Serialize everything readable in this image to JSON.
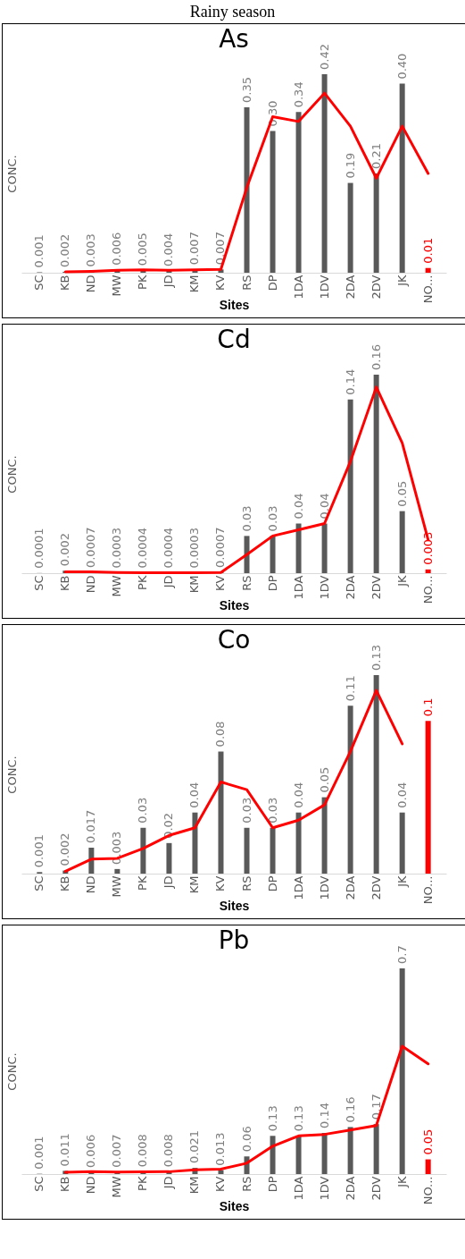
{
  "chart_data": [
    {
      "type": "bar",
      "title": "Rainy season",
      "subtitle": "As",
      "xlabel": "Sites",
      "ylabel": "CONC.",
      "tick_labels": "x",
      "grid": false,
      "line_style": "solid",
      "marker": "none",
      "categories": [
        "SC",
        "KB",
        "ND",
        "MW",
        "PK",
        "JD",
        "KM",
        "KV",
        "RS",
        "DP",
        "1DA",
        "1DV",
        "2DA",
        "2DV",
        "JK",
        "NO..."
      ],
      "series": [
        {
          "color": "#595959",
          "values": [
            0.001,
            0.002,
            0.003,
            0.006,
            0.005,
            0.004,
            0.007,
            0.007,
            0.35,
            0.3,
            0.34,
            0.42,
            0.19,
            0.21,
            0.4,
            null
          ],
          "value_labels": [
            "0.001",
            "0.002",
            "0.003",
            "0.006",
            "0.005",
            "0.004",
            "0.007",
            "0.007",
            "0.35",
            "0.30",
            "0.34",
            "0.42",
            "0.19",
            "0.21",
            "0.40",
            null
          ]
        },
        {
          "color": "#ff0000",
          "values": [
            null,
            null,
            null,
            null,
            null,
            null,
            null,
            null,
            null,
            null,
            null,
            null,
            null,
            null,
            null,
            0.01
          ],
          "value_labels": [
            null,
            null,
            null,
            null,
            null,
            null,
            null,
            null,
            null,
            null,
            null,
            null,
            null,
            null,
            null,
            "0.01"
          ]
        },
        {
          "type": "line",
          "color": "#ff0000",
          "values": [
            null,
            0.002,
            0.003,
            0.005,
            0.006,
            0.005,
            0.006,
            0.007,
            0.18,
            0.33,
            0.32,
            0.38,
            0.31,
            0.2,
            0.31,
            0.21
          ]
        }
      ]
    },
    {
      "type": "bar",
      "title": "Cd",
      "xlabel": "Sites",
      "ylabel": "CONC.",
      "tick_labels": "x",
      "grid": false,
      "line_style": "solid",
      "marker": "none",
      "categories": [
        "SC",
        "KB",
        "ND",
        "MW",
        "PK",
        "JD",
        "KM",
        "KV",
        "RS",
        "DP",
        "1DA",
        "1DV",
        "2DA",
        "2DV",
        "JK",
        "NO..."
      ],
      "series": [
        {
          "color": "#595959",
          "values": [
            0.0001,
            0.002,
            0.0007,
            0.0003,
            0.0004,
            0.0004,
            0.0003,
            0.0007,
            0.03,
            0.03,
            0.04,
            0.04,
            0.14,
            0.16,
            0.05,
            null
          ],
          "value_labels": [
            "0.0001",
            "0.002",
            "0.0007",
            "0.0003",
            "0.0004",
            "0.0004",
            "0.0003",
            "0.0007",
            "0.03",
            "0.03",
            "0.04",
            "0.04",
            "0.14",
            "0.16",
            "0.05",
            null
          ]
        },
        {
          "color": "#ff0000",
          "values": [
            null,
            null,
            null,
            null,
            null,
            null,
            null,
            null,
            null,
            null,
            null,
            null,
            null,
            null,
            null,
            0.003
          ],
          "value_labels": [
            null,
            null,
            null,
            null,
            null,
            null,
            null,
            null,
            null,
            null,
            null,
            null,
            null,
            null,
            null,
            "0.003"
          ]
        },
        {
          "type": "line",
          "color": "#ff0000",
          "values": [
            null,
            0.001,
            0.001,
            0.0005,
            0.0004,
            0.0004,
            0.0004,
            0.0005,
            0.015,
            0.03,
            0.035,
            0.04,
            0.09,
            0.15,
            0.105,
            0.027
          ]
        }
      ]
    },
    {
      "type": "bar",
      "title": "Co",
      "xlabel": "Sites",
      "ylabel": "CONC.",
      "tick_labels": "x",
      "grid": false,
      "line_style": "solid",
      "marker": "none",
      "categories": [
        "SC",
        "KB",
        "ND",
        "MW",
        "PK",
        "JD",
        "KM",
        "KV",
        "RS",
        "DP",
        "1DA",
        "1DV",
        "2DA",
        "2DV",
        "JK",
        "NO..."
      ],
      "series": [
        {
          "color": "#595959",
          "values": [
            0.001,
            0.002,
            0.017,
            0.003,
            0.03,
            0.02,
            0.04,
            0.08,
            0.03,
            0.03,
            0.04,
            0.05,
            0.11,
            0.13,
            0.04,
            null
          ],
          "value_labels": [
            "0.001",
            "0.002",
            "0.017",
            "0.003",
            "0.03",
            "0.02",
            "0.04",
            "0.08",
            "0.03",
            "0.03",
            "0.04",
            "0.05",
            "0.11",
            "0.13",
            "0.04",
            null
          ]
        },
        {
          "color": "#ff0000",
          "values": [
            null,
            null,
            null,
            null,
            null,
            null,
            null,
            null,
            null,
            null,
            null,
            null,
            null,
            null,
            null,
            0.1
          ],
          "value_labels": [
            null,
            null,
            null,
            null,
            null,
            null,
            null,
            null,
            null,
            null,
            null,
            null,
            null,
            null,
            null,
            "0.1"
          ]
        },
        {
          "type": "line",
          "color": "#ff0000",
          "values": [
            null,
            0.0015,
            0.0095,
            0.01,
            0.0165,
            0.025,
            0.03,
            0.06,
            0.055,
            0.03,
            0.035,
            0.045,
            0.08,
            0.12,
            0.085,
            null
          ]
        }
      ]
    },
    {
      "type": "bar",
      "title": "Pb",
      "xlabel": "Sites",
      "ylabel": "CONC.",
      "tick_labels": "x",
      "grid": false,
      "line_style": "solid",
      "marker": "none",
      "categories": [
        "SC",
        "KB",
        "ND",
        "MW",
        "PK",
        "JD",
        "KM",
        "KV",
        "RS",
        "DP",
        "1DA",
        "1DV",
        "2DA",
        "2DV",
        "JK",
        "NO..."
      ],
      "series": [
        {
          "color": "#595959",
          "values": [
            0.001,
            0.011,
            0.006,
            0.007,
            0.008,
            0.008,
            0.021,
            0.013,
            0.06,
            0.13,
            0.13,
            0.14,
            0.16,
            0.17,
            0.7,
            null
          ],
          "value_labels": [
            "0.001",
            "0.011",
            "0.006",
            "0.007",
            "0.008",
            "0.008",
            "0.021",
            "0.013",
            "0.06",
            "0.13",
            "0.13",
            "0.14",
            "0.16",
            "0.17",
            "0.7",
            null
          ]
        },
        {
          "color": "#ff0000",
          "values": [
            null,
            null,
            null,
            null,
            null,
            null,
            null,
            null,
            null,
            null,
            null,
            null,
            null,
            null,
            null,
            0.05
          ],
          "value_labels": [
            null,
            null,
            null,
            null,
            null,
            null,
            null,
            null,
            null,
            null,
            null,
            null,
            null,
            null,
            null,
            "0.05"
          ]
        },
        {
          "type": "line",
          "color": "#ff0000",
          "values": [
            null,
            0.006,
            0.0085,
            0.0065,
            0.0075,
            0.008,
            0.0145,
            0.017,
            0.037,
            0.095,
            0.13,
            0.135,
            0.15,
            0.165,
            0.435,
            0.375
          ]
        }
      ]
    }
  ]
}
